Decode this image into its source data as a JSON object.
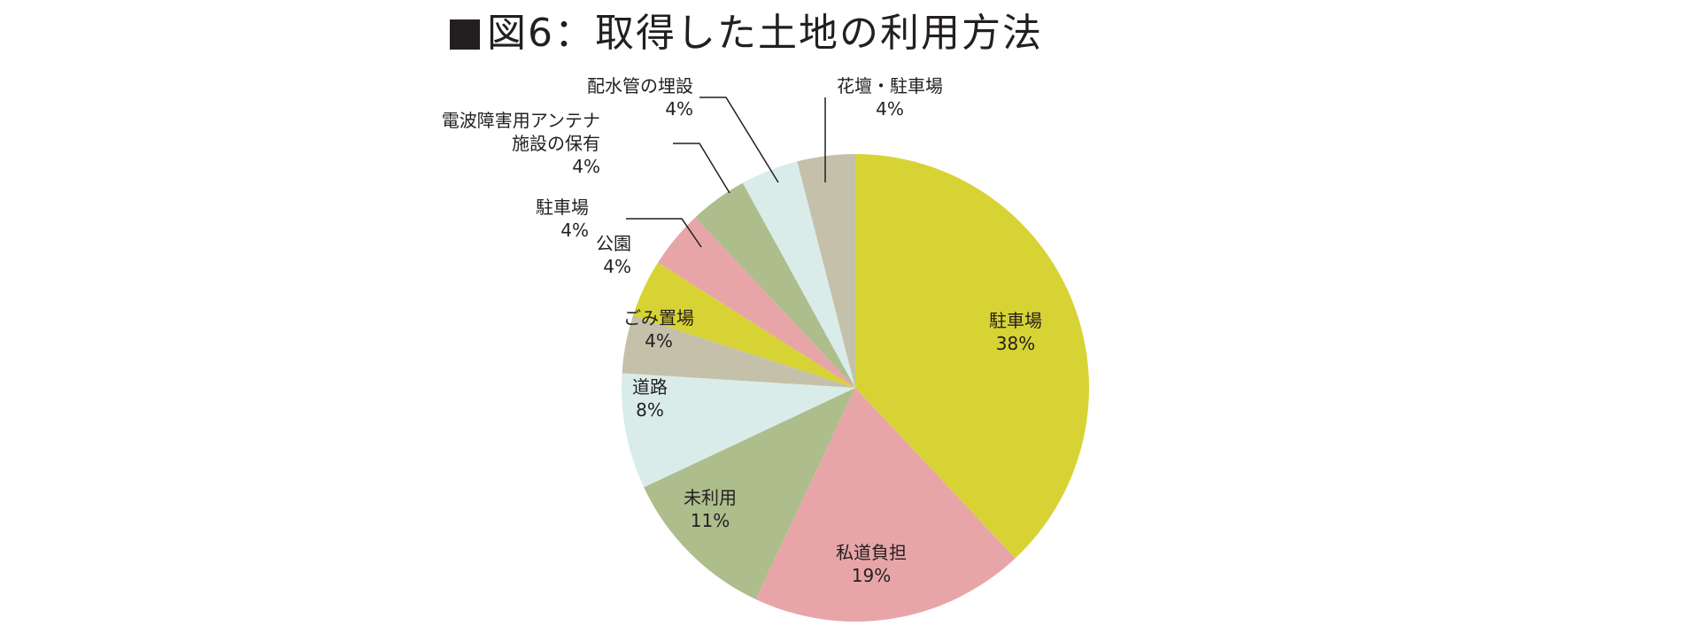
{
  "title": "図6：取得した土地の利用方法",
  "chart_data": {
    "type": "pie",
    "title": "図6：取得した土地の利用方法",
    "start": "12 o'clock",
    "direction": "clockwise",
    "slices": [
      {
        "label": "駐車場",
        "value": 38,
        "value_label": "38%",
        "color": "#d8d335"
      },
      {
        "label": "私道負担",
        "value": 19,
        "value_label": "19%",
        "color": "#e8a5a8"
      },
      {
        "label": "未利用",
        "value": 11,
        "value_label": "11%",
        "color": "#adbd8c"
      },
      {
        "label": "道路",
        "value": 8,
        "value_label": "8%",
        "color": "#d9ecea"
      },
      {
        "label": "ごみ置場",
        "value": 4,
        "value_label": "4%",
        "color": "#c4c0aa"
      },
      {
        "label": "公園",
        "value": 4,
        "value_label": "4%",
        "color": "#d8d335"
      },
      {
        "label": "駐車場",
        "value": 4,
        "value_label": "4%",
        "color": "#e8a5a8"
      },
      {
        "label": "電波障害用アンテナ施設の保有",
        "value": 4,
        "value_label": "4%",
        "color": "#adbd8c"
      },
      {
        "label": "配水管の埋設",
        "value": 4,
        "value_label": "4%",
        "color": "#d9ecea"
      },
      {
        "label": "花壇・駐車場",
        "value": 4,
        "value_label": "4%",
        "color": "#c4c0aa"
      }
    ]
  }
}
